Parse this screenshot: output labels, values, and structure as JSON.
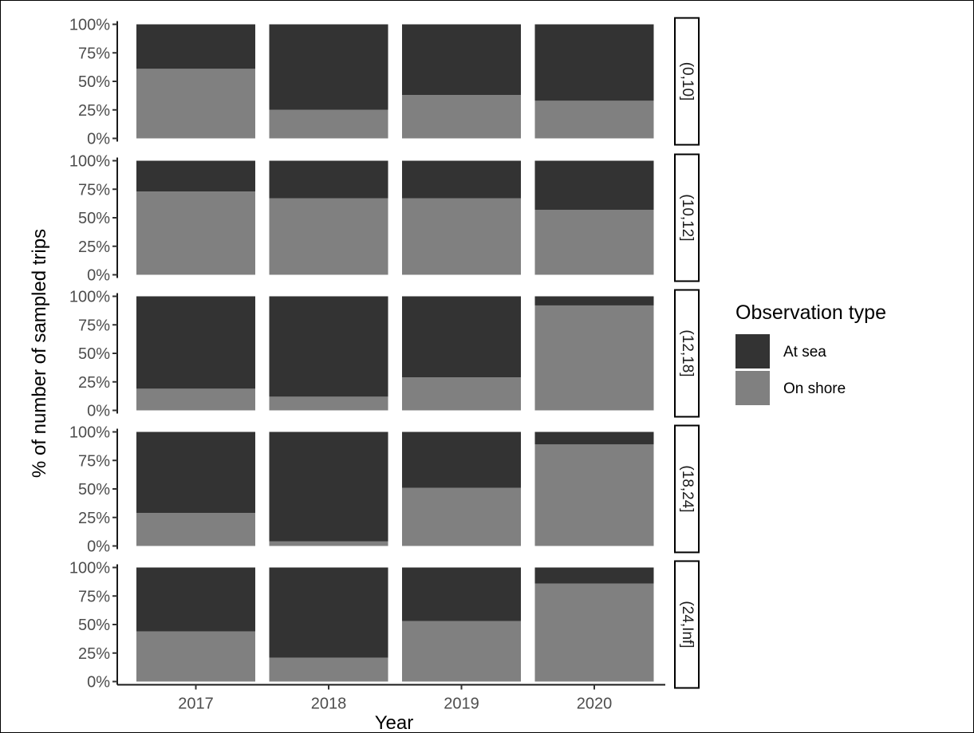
{
  "chart_data": {
    "type": "bar",
    "stacked": true,
    "faceted": true,
    "xlabel": "Year",
    "ylabel": "% of number of sampled trips",
    "ylim": [
      0,
      100
    ],
    "y_ticks": [
      "0%",
      "25%",
      "50%",
      "75%",
      "100%"
    ],
    "categories": [
      "2017",
      "2018",
      "2019",
      "2020"
    ],
    "legend": {
      "title": "Observation type",
      "position": "right",
      "entries": [
        {
          "name": "At sea",
          "color": "#333333"
        },
        {
          "name": "On shore",
          "color": "#808080"
        }
      ]
    },
    "facets": [
      {
        "label": "(0,10]",
        "series": [
          {
            "name": "On shore",
            "values": [
              61,
              25,
              38,
              33
            ]
          },
          {
            "name": "At sea",
            "values": [
              39,
              75,
              62,
              67
            ]
          }
        ]
      },
      {
        "label": "(10,12]",
        "series": [
          {
            "name": "On shore",
            "values": [
              73,
              67,
              67,
              57
            ]
          },
          {
            "name": "At sea",
            "values": [
              27,
              33,
              33,
              43
            ]
          }
        ]
      },
      {
        "label": "(12,18]",
        "series": [
          {
            "name": "On shore",
            "values": [
              19,
              12,
              29,
              92
            ]
          },
          {
            "name": "At sea",
            "values": [
              81,
              88,
              71,
              8
            ]
          }
        ]
      },
      {
        "label": "(18,24]",
        "series": [
          {
            "name": "On shore",
            "values": [
              29,
              4,
              51,
              89
            ]
          },
          {
            "name": "At sea",
            "values": [
              71,
              96,
              49,
              11
            ]
          }
        ]
      },
      {
        "label": "(24,Inf]",
        "series": [
          {
            "name": "On shore",
            "values": [
              44,
              21,
              53,
              86
            ]
          },
          {
            "name": "At sea",
            "values": [
              56,
              79,
              47,
              14
            ]
          }
        ]
      }
    ]
  }
}
